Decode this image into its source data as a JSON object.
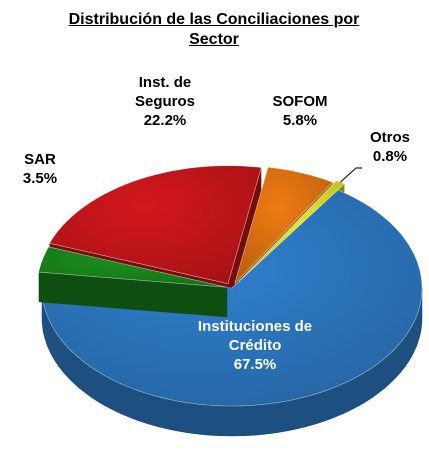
{
  "chart_data": {
    "type": "pie",
    "title": "Distribución de las Conciliaciones por Sector",
    "categories": [
      "Inst. de Seguros",
      "SOFOM",
      "Otros",
      "Instituciones de Crédito",
      "SAR"
    ],
    "values": [
      22.2,
      5.8,
      0.8,
      67.5,
      3.5
    ],
    "value_labels": [
      "22.2%",
      "5.8%",
      "0.8%",
      "67.5%",
      "3.5%"
    ],
    "colors": [
      "#d4171c",
      "#ee7a12",
      "#eeee22",
      "#2f80cf",
      "#1a8f1e"
    ]
  }
}
